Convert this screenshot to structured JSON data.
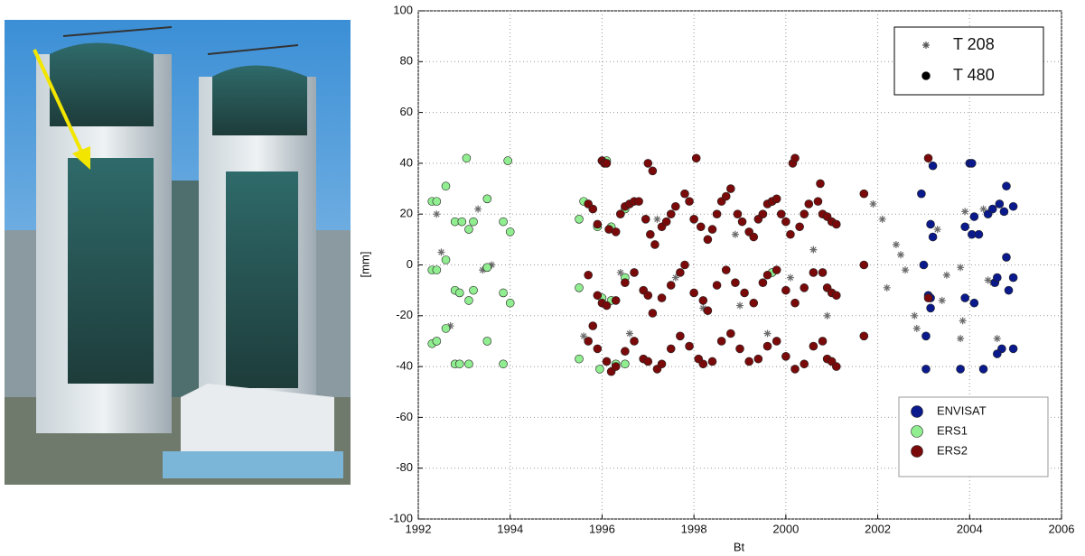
{
  "chart_data": {
    "type": "scatter",
    "x_label": "Bt",
    "y_label": "[mm]",
    "xlim": [
      1992,
      2006
    ],
    "xticks": [
      1992,
      1994,
      1996,
      1998,
      2000,
      2002,
      2004,
      2006
    ],
    "ylim": [
      -100,
      100
    ],
    "yticks": [
      -100,
      -80,
      -60,
      -40,
      -20,
      0,
      20,
      40,
      60,
      80,
      100
    ],
    "grid": true,
    "marker_legend": {
      "position": "upper right",
      "entries": [
        {
          "name": "T 208",
          "marker": "asterisk",
          "color": "#555555"
        },
        {
          "name": "T 480",
          "marker": "circle",
          "color": "#000000"
        }
      ]
    },
    "legend": "lower right",
    "series": [
      {
        "marker": "asterisk",
        "color": "#6b6b6b",
        "x": [
          1992.4,
          1992.5,
          1992.7,
          1993.3,
          1993.4,
          1993.6,
          1995.6,
          1996.4,
          1996.6,
          1997.2,
          1997.6,
          1998.2,
          1998.9,
          1999.0,
          1999.6,
          2000.1,
          2000.6,
          2000.9,
          2001.9,
          2002.1,
          2002.2,
          2002.4,
          2002.5,
          2002.6,
          2002.8,
          2002.85,
          2003.3,
          2003.4,
          2003.5,
          2003.8,
          2003.8,
          2003.85,
          2003.9,
          2004.3,
          2004.4,
          2004.6,
          2004.5
        ],
        "values": [
          20,
          5,
          -24,
          22,
          -2,
          0,
          -28,
          -3,
          -27,
          18,
          -5,
          -17,
          12,
          -16,
          -27,
          -5,
          6,
          -20,
          24,
          18,
          -9,
          8,
          4,
          -2,
          -20,
          -25,
          14,
          -14,
          -4,
          -1,
          -29,
          -22,
          21,
          22,
          -6,
          -29,
          -7
        ]
      },
      {
        "name": "ENVISAT",
        "marker": "circle",
        "color": "#0a1a8c",
        "x": [
          2002.95,
          2003.0,
          2003.05,
          2003.1,
          2003.15,
          2003.15,
          2003.15,
          2003.2,
          2003.2,
          2003.05,
          2003.8,
          2003.9,
          2003.9,
          2004.0,
          2004.05,
          2004.05,
          2004.1,
          2004.1,
          2004.2,
          2004.3,
          2004.4,
          2004.5,
          2004.55,
          2004.6,
          2004.65,
          2004.7,
          2004.75,
          2004.8,
          2004.8,
          2004.85,
          2004.95,
          2004.95,
          2004.95,
          2004.6
        ],
        "values": [
          28,
          0,
          -28,
          -12,
          16,
          -13,
          -17,
          11,
          39,
          -41,
          -41,
          15,
          -13,
          40,
          40,
          12,
          -15,
          19,
          12,
          -41,
          20,
          22,
          -7,
          -5,
          24,
          -33,
          21,
          31,
          3,
          -10,
          -5,
          23,
          -33,
          -35
        ]
      },
      {
        "name": "ERS1",
        "marker": "circle",
        "color": "#90ee90",
        "x": [
          1992.3,
          1992.4,
          1992.6,
          1992.8,
          1992.95,
          1993.05,
          1993.1,
          1993.2,
          1993.5,
          1993.85,
          1993.95,
          1994.0,
          1995.5,
          1995.6,
          1995.9,
          1996.0,
          1996.1,
          1996.2,
          1996.5,
          1999.7,
          1992.3,
          1992.4,
          1992.6,
          1992.8,
          1992.9,
          1993.1,
          1993.2,
          1993.5,
          1993.85,
          1994.0,
          1995.5,
          1996.0,
          1996.2,
          1996.5,
          1999.7,
          1992.3,
          1992.4,
          1992.6,
          1992.8,
          1992.9,
          1993.1,
          1993.5,
          1993.85,
          1995.5,
          1995.95,
          1996.3,
          1996.5
        ],
        "values": [
          25,
          25,
          31,
          17,
          17,
          42,
          14,
          17,
          26,
          17,
          41,
          13,
          18,
          25,
          15,
          41,
          41,
          15,
          22,
          25,
          -2,
          -2,
          2,
          -10,
          -11,
          -14,
          -10,
          -1,
          -11,
          -15,
          -9,
          -13,
          -14,
          -5,
          -3,
          -31,
          -30,
          -25,
          -39,
          -39,
          -39,
          -30,
          -39,
          -37,
          -41,
          -39,
          -39
        ]
      },
      {
        "name": "ERS2",
        "marker": "circle",
        "color": "#7a0a0a",
        "x": [
          1995.7,
          1995.8,
          1995.9,
          1996.0,
          1996.05,
          1996.1,
          1996.15,
          1996.3,
          1996.4,
          1996.5,
          1996.6,
          1996.7,
          1996.8,
          1996.95,
          1997.0,
          1997.05,
          1997.1,
          1997.15,
          1997.3,
          1997.4,
          1997.5,
          1997.6,
          1997.8,
          1997.9,
          1998.0,
          1998.05,
          1998.15,
          1998.3,
          1998.4,
          1998.5,
          1998.6,
          1998.7,
          1998.8,
          1998.95,
          1999.05,
          1999.2,
          1999.3,
          1999.4,
          1999.5,
          1999.6,
          1999.7,
          1999.8,
          1999.9,
          2000.0,
          2000.1,
          2000.15,
          2000.2,
          2000.3,
          2000.4,
          2000.5,
          2000.7,
          2000.75,
          2000.8,
          2000.9,
          2001.0,
          2001.1,
          2001.7,
          2003.1,
          1995.7,
          1995.9,
          1996.0,
          1996.1,
          1996.3,
          1996.5,
          1996.7,
          1996.9,
          1997.0,
          1997.1,
          1997.3,
          1997.5,
          1997.7,
          1997.8,
          1998.0,
          1998.2,
          1998.3,
          1998.5,
          1998.7,
          1998.9,
          1999.1,
          1999.3,
          1999.5,
          1999.6,
          1999.8,
          2000.0,
          2000.2,
          2000.4,
          2000.6,
          2000.8,
          2000.9,
          2001.0,
          2001.1,
          2001.7,
          2003.1,
          1995.7,
          1995.8,
          1995.9,
          1996.1,
          1996.2,
          1996.3,
          1996.5,
          1996.7,
          1996.9,
          1997.0,
          1997.2,
          1997.3,
          1997.5,
          1997.7,
          1997.9,
          1998.1,
          1998.2,
          1998.4,
          1998.6,
          1998.8,
          1999.0,
          1999.2,
          1999.4,
          1999.6,
          1999.8,
          2000.0,
          2000.2,
          2000.4,
          2000.6,
          2000.8,
          2000.9,
          2001.0,
          2001.1,
          2001.7
        ],
        "values": [
          24,
          22,
          16,
          41,
          40,
          40,
          14,
          13,
          20,
          23,
          24,
          25,
          25,
          18,
          40,
          12,
          37,
          8,
          15,
          17,
          20,
          23,
          28,
          25,
          18,
          42,
          15,
          10,
          14,
          20,
          25,
          27,
          30,
          20,
          17,
          13,
          11,
          18,
          20,
          24,
          25,
          26,
          20,
          17,
          12,
          40,
          42,
          15,
          20,
          24,
          25,
          32,
          20,
          19,
          17,
          16,
          28,
          42,
          -4,
          -12,
          -15,
          -16,
          -14,
          -7,
          -3,
          -10,
          -12,
          -19,
          -13,
          -8,
          -3,
          0,
          -11,
          -14,
          -18,
          -8,
          -2,
          -7,
          -11,
          -15,
          -7,
          -4,
          -2,
          -10,
          -15,
          -9,
          -3,
          -3,
          -9,
          -11,
          -12,
          0,
          -13,
          -30,
          -24,
          -33,
          -38,
          -42,
          -40,
          -34,
          -30,
          -37,
          -38,
          -41,
          -39,
          -33,
          -28,
          -32,
          -37,
          -39,
          -38,
          -30,
          -27,
          -33,
          -38,
          -37,
          -32,
          -30,
          -36,
          -41,
          -39,
          -32,
          -30,
          -37,
          -38,
          -40,
          -28
        ]
      }
    ]
  }
}
